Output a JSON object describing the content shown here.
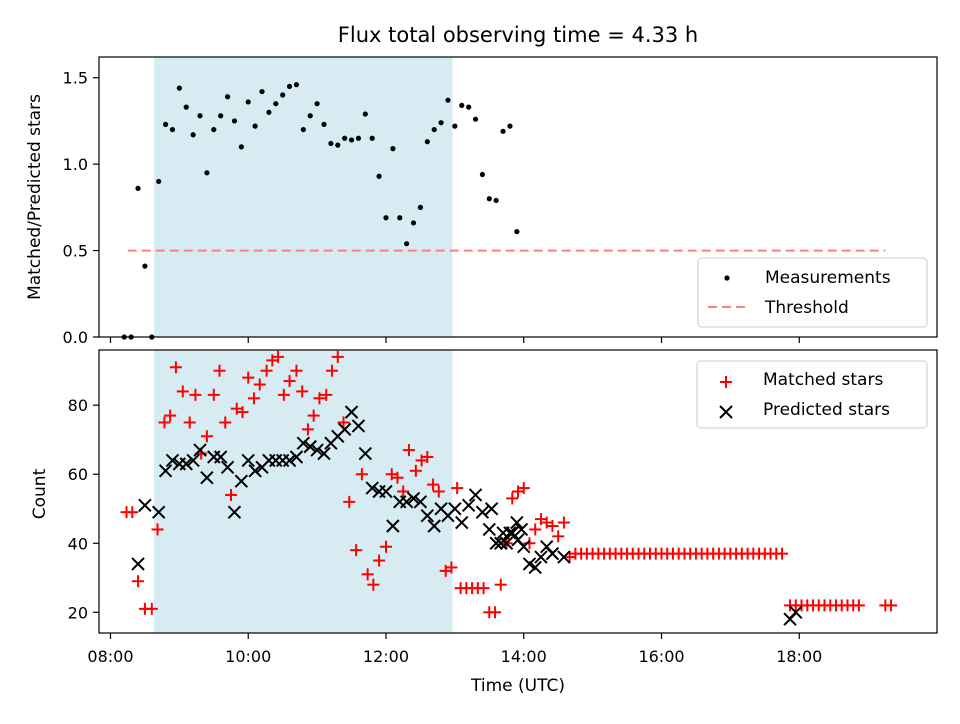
{
  "figure": {
    "title": "Flux total observing time = 4.33 h",
    "xlabel": "Time (UTC)"
  },
  "colors": {
    "shade": "#add8e6",
    "measurement": "#000000",
    "threshold": "#ff7f7f",
    "matched": "#ff0000",
    "predicted": "#000000"
  },
  "chart_data": [
    {
      "type": "scatter",
      "panel": "top",
      "ylabel": "Matched/Predicted stars",
      "xlim": [
        "07:50",
        "20:00"
      ],
      "ylim": [
        0,
        1.62
      ],
      "xticks": [
        "08:00",
        "10:00",
        "12:00",
        "14:00",
        "16:00",
        "18:00"
      ],
      "yticks": [
        0.0,
        0.5,
        1.0,
        1.5
      ],
      "ytick_labels": [
        "0.0",
        "0.5",
        "1.0",
        "1.5"
      ],
      "shaded_interval": [
        "08:38",
        "12:58"
      ],
      "legend": {
        "placement": "lower right",
        "entries": [
          "Measurements",
          "Threshold"
        ]
      },
      "threshold": {
        "name": "Threshold",
        "y": 0.5,
        "x_range": [
          "08:15",
          "19:15"
        ]
      },
      "series": [
        {
          "name": "Measurements",
          "points": [
            [
              "08:12",
              0
            ],
            [
              "08:18",
              0
            ],
            [
              "08:24",
              0.86
            ],
            [
              "08:30",
              0.41
            ],
            [
              "08:36",
              0
            ],
            [
              "08:42",
              0.9
            ],
            [
              "08:48",
              1.23
            ],
            [
              "08:54",
              1.2
            ],
            [
              "09:00",
              1.44
            ],
            [
              "09:06",
              1.33
            ],
            [
              "09:12",
              1.17
            ],
            [
              "09:18",
              1.28
            ],
            [
              "09:24",
              0.95
            ],
            [
              "09:30",
              1.2
            ],
            [
              "09:36",
              1.28
            ],
            [
              "09:42",
              1.39
            ],
            [
              "09:48",
              1.25
            ],
            [
              "09:54",
              1.1
            ],
            [
              "10:00",
              1.36
            ],
            [
              "10:06",
              1.22
            ],
            [
              "10:12",
              1.42
            ],
            [
              "10:18",
              1.3
            ],
            [
              "10:24",
              1.35
            ],
            [
              "10:30",
              1.4
            ],
            [
              "10:36",
              1.45
            ],
            [
              "10:42",
              1.46
            ],
            [
              "10:48",
              1.2
            ],
            [
              "10:54",
              1.28
            ],
            [
              "11:00",
              1.35
            ],
            [
              "11:06",
              1.23
            ],
            [
              "11:12",
              1.12
            ],
            [
              "11:18",
              1.11
            ],
            [
              "11:24",
              1.15
            ],
            [
              "11:30",
              1.14
            ],
            [
              "11:36",
              1.15
            ],
            [
              "11:42",
              1.29
            ],
            [
              "11:48",
              1.15
            ],
            [
              "11:54",
              0.93
            ],
            [
              "12:00",
              0.69
            ],
            [
              "12:06",
              1.09
            ],
            [
              "12:12",
              0.69
            ],
            [
              "12:18",
              0.54
            ],
            [
              "12:24",
              0.66
            ],
            [
              "12:30",
              0.75
            ],
            [
              "12:36",
              1.13
            ],
            [
              "12:42",
              1.2
            ],
            [
              "12:48",
              1.24
            ],
            [
              "12:54",
              1.37
            ],
            [
              "13:00",
              1.22
            ],
            [
              "13:06",
              1.34
            ],
            [
              "13:12",
              1.33
            ],
            [
              "13:18",
              1.26
            ],
            [
              "13:24",
              0.94
            ],
            [
              "13:30",
              0.8
            ],
            [
              "13:36",
              0.79
            ],
            [
              "13:42",
              1.19
            ],
            [
              "13:48",
              1.22
            ],
            [
              "13:54",
              0.61
            ]
          ]
        }
      ]
    },
    {
      "type": "scatter",
      "panel": "bottom",
      "ylabel": "Count",
      "xlim": [
        "07:50",
        "20:00"
      ],
      "ylim": [
        14,
        96
      ],
      "xticks": [
        "08:00",
        "10:00",
        "12:00",
        "14:00",
        "16:00",
        "18:00"
      ],
      "yticks": [
        20,
        40,
        60,
        80
      ],
      "shaded_interval": [
        "08:38",
        "12:58"
      ],
      "legend": {
        "placement": "upper right",
        "entries": [
          "Matched stars",
          "Predicted stars"
        ]
      },
      "series": [
        {
          "name": "Matched stars",
          "points": [
            [
              "08:14",
              49
            ],
            [
              "08:19",
              49
            ],
            [
              "08:24",
              29
            ],
            [
              "08:30",
              21
            ],
            [
              "08:36",
              21
            ],
            [
              "08:41",
              44
            ],
            [
              "08:47",
              75
            ],
            [
              "08:52",
              77
            ],
            [
              "08:57",
              91
            ],
            [
              "09:03",
              84
            ],
            [
              "09:09",
              75
            ],
            [
              "09:14",
              83
            ],
            [
              "09:19",
              66
            ],
            [
              "09:24",
              71
            ],
            [
              "09:30",
              83
            ],
            [
              "09:35",
              90
            ],
            [
              "09:40",
              75
            ],
            [
              "09:45",
              54
            ],
            [
              "09:50",
              79
            ],
            [
              "09:55",
              78
            ],
            [
              "10:00",
              88
            ],
            [
              "10:05",
              82
            ],
            [
              "10:10",
              86
            ],
            [
              "10:16",
              90
            ],
            [
              "10:21",
              93
            ],
            [
              "10:26",
              94
            ],
            [
              "10:31",
              83
            ],
            [
              "10:36",
              87
            ],
            [
              "10:42",
              90
            ],
            [
              "10:47",
              84
            ],
            [
              "10:52",
              73
            ],
            [
              "10:57",
              77
            ],
            [
              "11:02",
              82
            ],
            [
              "11:08",
              83
            ],
            [
              "11:13",
              90
            ],
            [
              "11:18",
              94
            ],
            [
              "11:23",
              75
            ],
            [
              "11:28",
              52
            ],
            [
              "11:34",
              38
            ],
            [
              "11:39",
              60
            ],
            [
              "11:44",
              31
            ],
            [
              "11:49",
              28
            ],
            [
              "11:54",
              35
            ],
            [
              "12:00",
              39
            ],
            [
              "12:05",
              60
            ],
            [
              "12:10",
              59
            ],
            [
              "12:15",
              55
            ],
            [
              "12:20",
              67
            ],
            [
              "12:26",
              61
            ],
            [
              "12:31",
              64
            ],
            [
              "12:36",
              65
            ],
            [
              "12:41",
              57
            ],
            [
              "12:46",
              55
            ],
            [
              "12:52",
              32
            ],
            [
              "12:57",
              33
            ],
            [
              "13:02",
              56
            ],
            [
              "13:05",
              27
            ],
            [
              "13:10",
              27
            ],
            [
              "13:15",
              27
            ],
            [
              "13:20",
              27
            ],
            [
              "13:25",
              27
            ],
            [
              "13:30",
              20
            ],
            [
              "13:35",
              20
            ],
            [
              "13:40",
              28
            ],
            [
              "13:45",
              40
            ],
            [
              "13:50",
              53
            ],
            [
              "13:55",
              55
            ],
            [
              "14:00",
              56
            ],
            [
              "14:05",
              40
            ],
            [
              "14:10",
              44
            ],
            [
              "14:15",
              47
            ],
            [
              "14:20",
              46
            ],
            [
              "14:25",
              45
            ],
            [
              "14:30",
              42
            ],
            [
              "14:35",
              46
            ],
            [
              "14:40",
              36
            ],
            [
              "14:45",
              37
            ],
            [
              "14:50",
              37
            ],
            [
              "14:55",
              37
            ],
            [
              "15:00",
              37
            ],
            [
              "15:05",
              37
            ],
            [
              "15:10",
              37
            ],
            [
              "15:15",
              37
            ],
            [
              "15:20",
              37
            ],
            [
              "15:25",
              37
            ],
            [
              "15:30",
              37
            ],
            [
              "15:35",
              37
            ],
            [
              "15:40",
              37
            ],
            [
              "15:45",
              37
            ],
            [
              "15:50",
              37
            ],
            [
              "15:55",
              37
            ],
            [
              "16:00",
              37
            ],
            [
              "16:05",
              37
            ],
            [
              "16:10",
              37
            ],
            [
              "16:15",
              37
            ],
            [
              "16:20",
              37
            ],
            [
              "16:25",
              37
            ],
            [
              "16:30",
              37
            ],
            [
              "16:35",
              37
            ],
            [
              "16:40",
              37
            ],
            [
              "16:45",
              37
            ],
            [
              "16:50",
              37
            ],
            [
              "16:55",
              37
            ],
            [
              "17:00",
              37
            ],
            [
              "17:05",
              37
            ],
            [
              "17:10",
              37
            ],
            [
              "17:15",
              37
            ],
            [
              "17:20",
              37
            ],
            [
              "17:25",
              37
            ],
            [
              "17:30",
              37
            ],
            [
              "17:35",
              37
            ],
            [
              "17:40",
              37
            ],
            [
              "17:45",
              37
            ],
            [
              "17:52",
              22
            ],
            [
              "17:57",
              22
            ],
            [
              "18:02",
              22
            ],
            [
              "18:07",
              22
            ],
            [
              "18:12",
              22
            ],
            [
              "18:17",
              22
            ],
            [
              "18:22",
              22
            ],
            [
              "18:27",
              22
            ],
            [
              "18:32",
              22
            ],
            [
              "18:37",
              22
            ],
            [
              "18:42",
              22
            ],
            [
              "18:47",
              22
            ],
            [
              "18:52",
              22
            ],
            [
              "19:15",
              22
            ],
            [
              "19:20",
              22
            ]
          ]
        },
        {
          "name": "Predicted stars",
          "points": [
            [
              "08:24",
              34
            ],
            [
              "08:30",
              51
            ],
            [
              "08:42",
              49
            ],
            [
              "08:48",
              61
            ],
            [
              "08:54",
              64
            ],
            [
              "09:00",
              63
            ],
            [
              "09:06",
              63
            ],
            [
              "09:12",
              64
            ],
            [
              "09:18",
              67
            ],
            [
              "09:24",
              59
            ],
            [
              "09:30",
              65
            ],
            [
              "09:36",
              65
            ],
            [
              "09:42",
              62
            ],
            [
              "09:48",
              49
            ],
            [
              "09:54",
              58
            ],
            [
              "10:00",
              64
            ],
            [
              "10:06",
              61
            ],
            [
              "10:12",
              62
            ],
            [
              "10:18",
              64
            ],
            [
              "10:24",
              64
            ],
            [
              "10:30",
              64
            ],
            [
              "10:36",
              64
            ],
            [
              "10:42",
              65
            ],
            [
              "10:48",
              69
            ],
            [
              "10:54",
              68
            ],
            [
              "11:00",
              67
            ],
            [
              "11:06",
              66
            ],
            [
              "11:12",
              69
            ],
            [
              "11:18",
              71
            ],
            [
              "11:24",
              73
            ],
            [
              "11:30",
              78
            ],
            [
              "11:36",
              74
            ],
            [
              "11:42",
              66
            ],
            [
              "11:48",
              56
            ],
            [
              "11:54",
              55
            ],
            [
              "12:00",
              55
            ],
            [
              "12:06",
              45
            ],
            [
              "12:12",
              52
            ],
            [
              "12:18",
              52
            ],
            [
              "12:24",
              53
            ],
            [
              "12:30",
              52
            ],
            [
              "12:36",
              48
            ],
            [
              "12:42",
              45
            ],
            [
              "12:48",
              50
            ],
            [
              "12:54",
              48
            ],
            [
              "13:00",
              50
            ],
            [
              "13:06",
              46
            ],
            [
              "13:12",
              51
            ],
            [
              "13:18",
              54
            ],
            [
              "13:24",
              49
            ],
            [
              "13:30",
              44
            ],
            [
              "13:36",
              40
            ],
            [
              "13:42",
              43
            ],
            [
              "13:48",
              43
            ],
            [
              "13:54",
              46
            ],
            [
              "13:58",
              44
            ],
            [
              "13:32",
              50
            ],
            [
              "13:40",
              40
            ],
            [
              "13:45",
              40
            ],
            [
              "13:50",
              43
            ],
            [
              "13:55",
              41
            ],
            [
              "14:00",
              39
            ],
            [
              "14:05",
              34
            ],
            [
              "14:10",
              33
            ],
            [
              "14:15",
              36
            ],
            [
              "14:20",
              39
            ],
            [
              "14:25",
              37
            ],
            [
              "14:35",
              36
            ],
            [
              "17:52",
              18
            ],
            [
              "17:57",
              20
            ]
          ]
        }
      ]
    }
  ]
}
